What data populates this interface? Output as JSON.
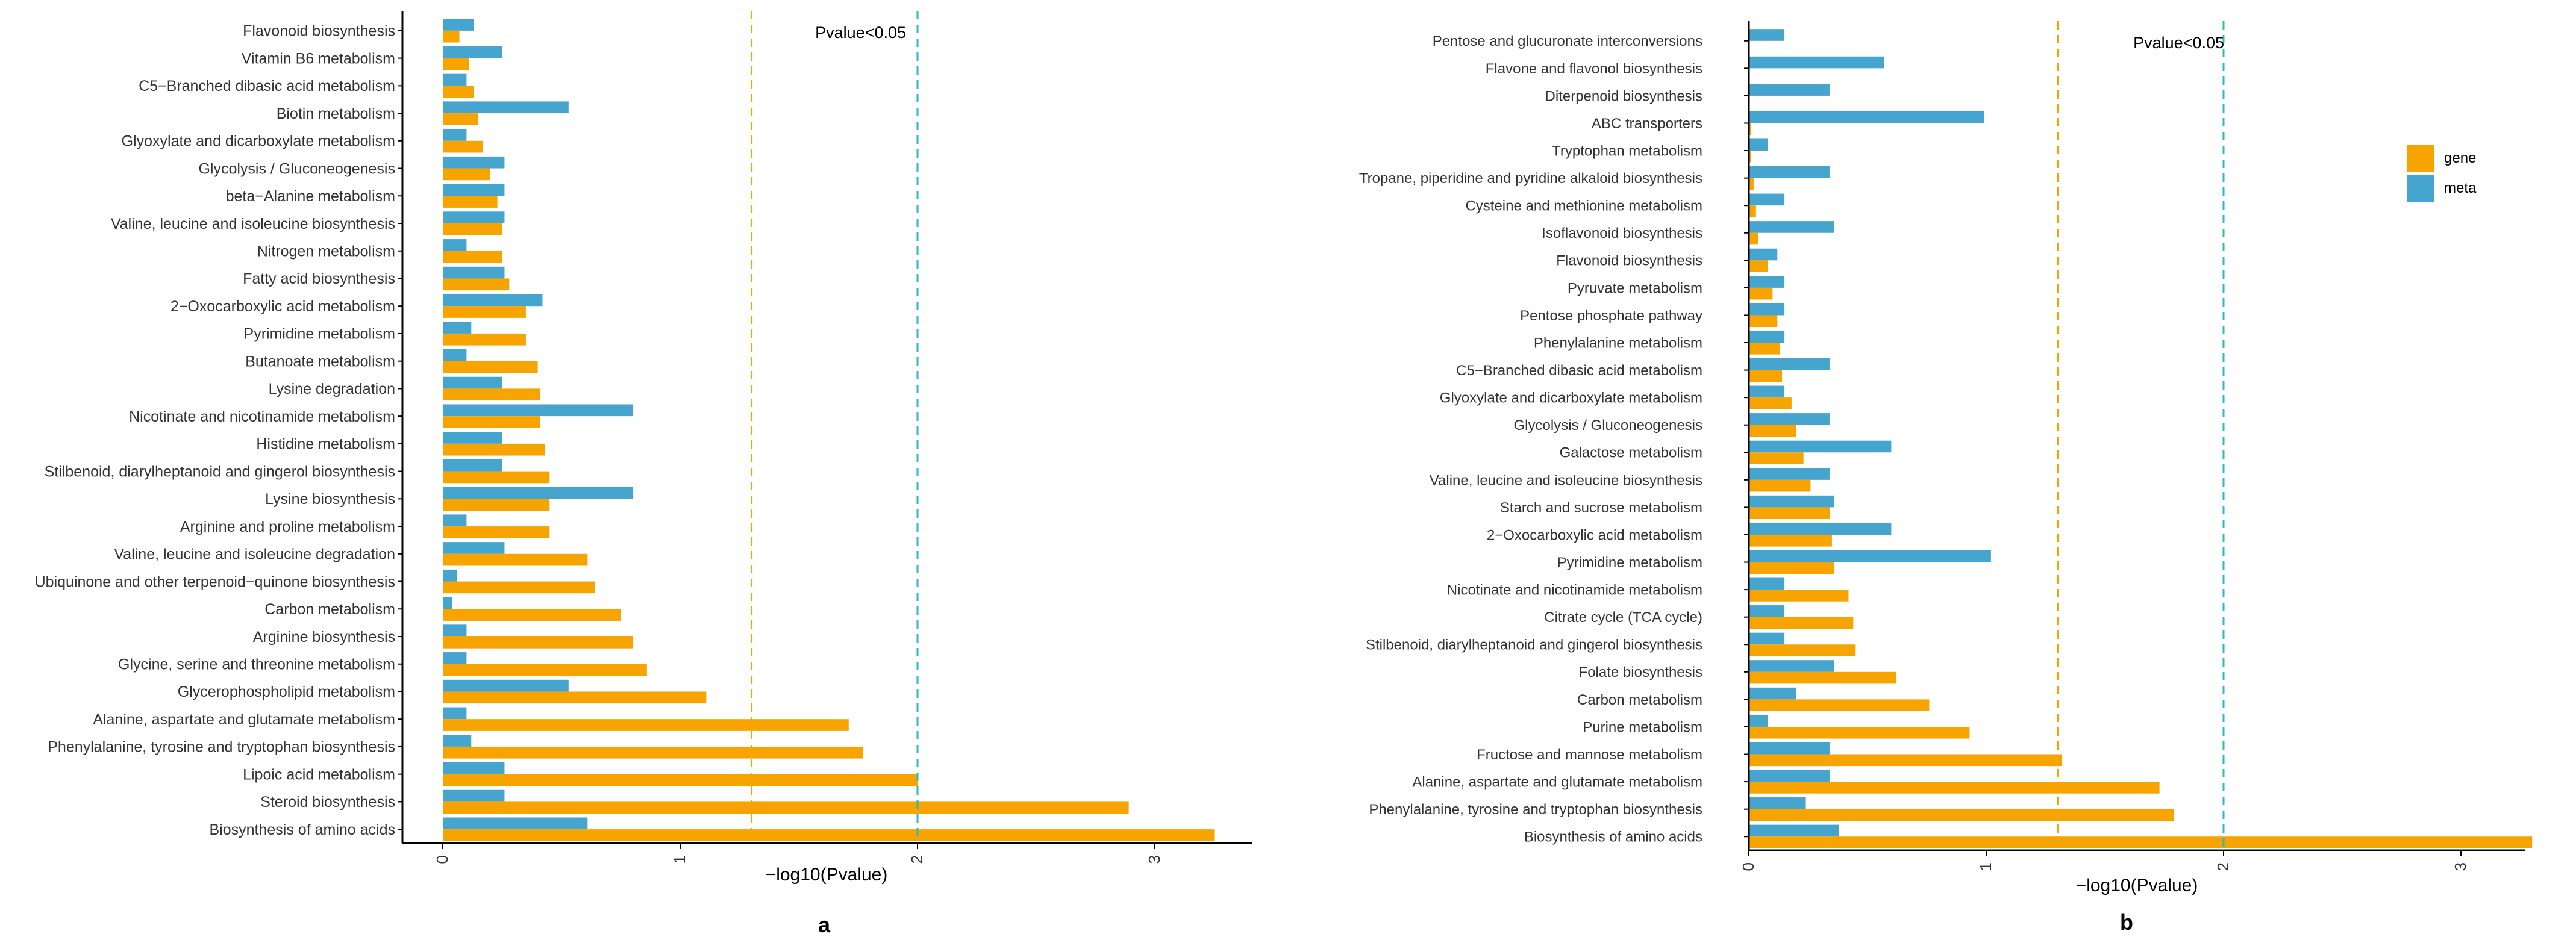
{
  "colors": {
    "gene": "#F7A400",
    "meta": "#45A5CF",
    "threshold_gene": "#F7A400",
    "threshold_meta": "#29B9C4",
    "axis": "#000000",
    "text": "#333333"
  },
  "legend": {
    "entries": [
      "gene",
      "meta"
    ],
    "position": "right of panel b"
  },
  "chart_data": [
    {
      "type": "bar",
      "orientation": "horizontal",
      "panel_label": "a",
      "xlabel": "−log10(Pvalue)",
      "annotation": "Pvalue<0.05",
      "xlim": [
        -0.15,
        3.4
      ],
      "xticks": [
        "0",
        "1",
        "2",
        "3"
      ],
      "thresholds": [
        1.301,
        2.0
      ],
      "categories": [
        "Flavonoid biosynthesis",
        "Vitamin B6 metabolism",
        "C5−Branched dibasic acid metabolism",
        "Biotin metabolism",
        "Glyoxylate and dicarboxylate metabolism",
        "Glycolysis / Gluconeogenesis",
        "beta−Alanine metabolism",
        "Valine, leucine and isoleucine biosynthesis",
        "Nitrogen metabolism",
        "Fatty acid biosynthesis",
        "2−Oxocarboxylic acid metabolism",
        "Pyrimidine metabolism",
        "Butanoate metabolism",
        "Lysine degradation",
        "Nicotinate and nicotinamide metabolism",
        "Histidine metabolism",
        "Stilbenoid, diarylheptanoid and gingerol biosynthesis",
        "Lysine biosynthesis",
        "Arginine and proline metabolism",
        "Valine, leucine and isoleucine degradation",
        "Ubiquinone and other terpenoid−quinone biosynthesis",
        "Carbon metabolism",
        "Arginine biosynthesis",
        "Glycine, serine and threonine metabolism",
        "Glycerophospholipid metabolism",
        "Alanine, aspartate and glutamate metabolism",
        "Phenylalanine, tyrosine and tryptophan biosynthesis",
        "Lipoic acid metabolism",
        "Steroid biosynthesis",
        "Biosynthesis of amino acids"
      ],
      "series": [
        {
          "name": "meta",
          "values": [
            0.13,
            0.25,
            0.1,
            0.53,
            0.1,
            0.26,
            0.26,
            0.26,
            0.1,
            0.26,
            0.42,
            0.12,
            0.1,
            0.25,
            0.8,
            0.25,
            0.25,
            0.8,
            0.1,
            0.26,
            0.06,
            0.04,
            0.1,
            0.1,
            0.53,
            0.1,
            0.12,
            0.26,
            0.26,
            0.61
          ]
        },
        {
          "name": "gene",
          "values": [
            0.07,
            0.11,
            0.13,
            0.15,
            0.17,
            0.2,
            0.23,
            0.25,
            0.25,
            0.28,
            0.35,
            0.35,
            0.4,
            0.41,
            0.41,
            0.43,
            0.45,
            0.45,
            0.45,
            0.61,
            0.64,
            0.75,
            0.8,
            0.86,
            1.11,
            1.71,
            1.77,
            2.0,
            2.89,
            3.25
          ]
        }
      ]
    },
    {
      "type": "bar",
      "orientation": "horizontal",
      "panel_label": "b",
      "xlabel": "−log10(Pvalue)",
      "annotation": "Pvalue<0.05",
      "xlim": [
        -0.03,
        3.3
      ],
      "xticks": [
        "0",
        "1",
        "2",
        "3"
      ],
      "thresholds": [
        1.301,
        2.0
      ],
      "categories": [
        "Pentose and glucuronate interconversions",
        "Flavone and flavonol biosynthesis",
        "Diterpenoid biosynthesis",
        "ABC transporters",
        "Tryptophan metabolism",
        "Tropane, piperidine and pyridine alkaloid biosynthesis",
        "Cysteine and methionine metabolism",
        "Isoflavonoid biosynthesis",
        "Flavonoid biosynthesis",
        "Pyruvate metabolism",
        "Pentose phosphate pathway",
        "Phenylalanine metabolism",
        "C5−Branched dibasic acid metabolism",
        "Glyoxylate and dicarboxylate metabolism",
        "Glycolysis / Gluconeogenesis",
        "Galactose metabolism",
        "Valine, leucine and isoleucine biosynthesis",
        "Starch and sucrose metabolism",
        "2−Oxocarboxylic acid metabolism",
        "Pyrimidine metabolism",
        "Nicotinate and nicotinamide metabolism",
        "Citrate cycle (TCA cycle)",
        "Stilbenoid, diarylheptanoid and gingerol biosynthesis",
        "Folate biosynthesis",
        "Carbon metabolism",
        "Purine metabolism",
        "Fructose and mannose metabolism",
        "Alanine, aspartate and glutamate metabolism",
        "Phenylalanine, tyrosine and tryptophan biosynthesis",
        "Biosynthesis of amino acids"
      ],
      "series": [
        {
          "name": "meta",
          "values": [
            0.15,
            0.57,
            0.34,
            0.99,
            0.08,
            0.34,
            0.15,
            0.36,
            0.12,
            0.15,
            0.15,
            0.15,
            0.34,
            0.15,
            0.34,
            0.6,
            0.34,
            0.36,
            0.6,
            1.02,
            0.15,
            0.15,
            0.15,
            0.36,
            0.2,
            0.08,
            0.34,
            0.34,
            0.24,
            0.38
          ]
        },
        {
          "name": "gene",
          "values": [
            0.0,
            0.0,
            0.0,
            0.01,
            0.01,
            0.02,
            0.03,
            0.04,
            0.08,
            0.1,
            0.12,
            0.13,
            0.14,
            0.18,
            0.2,
            0.23,
            0.26,
            0.34,
            0.35,
            0.36,
            0.42,
            0.44,
            0.45,
            0.62,
            0.76,
            0.93,
            1.32,
            1.73,
            1.79,
            3.3
          ]
        }
      ]
    }
  ]
}
